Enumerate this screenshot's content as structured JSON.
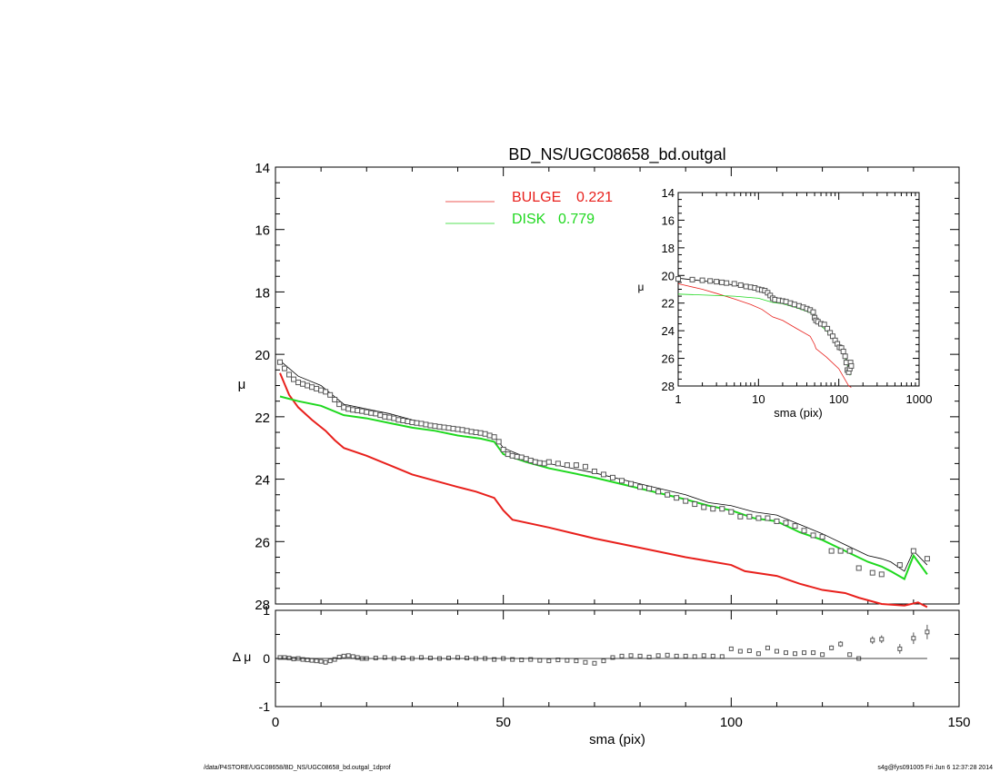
{
  "title": "BD_NS/UGC08658_bd.outgal",
  "footer_left": "/data/P4STORE/UGC08658/BD_NS/UGC08658_bd.outgal_1dprof",
  "footer_right": "s4g@fys091005  Fri Jun  6 12:37:28 2014",
  "colors": {
    "bulge": "#e8201c",
    "disk": "#1fd81f",
    "total": "#000000",
    "data": "#555555"
  },
  "chart_data": [
    {
      "type": "line",
      "panel": "main",
      "xlabel": "",
      "ylabel": "μ",
      "xlim": [
        0,
        150
      ],
      "ylim": [
        28,
        14
      ],
      "y_inverted": true,
      "yticks": [
        "14",
        "16",
        "18",
        "20",
        "22",
        "24",
        "26",
        "28"
      ],
      "legend": [
        {
          "label": "BULGE",
          "value": "0.221",
          "color": "#e8201c"
        },
        {
          "label": "DISK",
          "value": "0.779",
          "color": "#1fd81f"
        }
      ],
      "legend_position": "top-center",
      "series": [
        {
          "name": "BULGE",
          "color": "#e8201c",
          "x": [
            1,
            3,
            5,
            8,
            11,
            13,
            15,
            20,
            25,
            30,
            35,
            40,
            44,
            48,
            50,
            52,
            60,
            70,
            80,
            90,
            100,
            103,
            110,
            115,
            120,
            125,
            128,
            133,
            138,
            141,
            143
          ],
          "y": [
            20.6,
            21.3,
            21.7,
            22.1,
            22.45,
            22.75,
            23.0,
            23.25,
            23.55,
            23.85,
            24.05,
            24.25,
            24.4,
            24.6,
            25.0,
            25.3,
            25.55,
            25.9,
            26.2,
            26.5,
            26.75,
            26.95,
            27.1,
            27.35,
            27.55,
            27.65,
            27.8,
            28.0,
            28.05,
            27.95,
            28.1
          ]
        },
        {
          "name": "DISK",
          "color": "#1fd81f",
          "x": [
            1,
            5,
            10,
            15,
            20,
            25,
            30,
            35,
            40,
            45,
            48,
            50,
            55,
            60,
            70,
            80,
            90,
            95,
            100,
            105,
            110,
            115,
            120,
            125,
            130,
            133,
            135,
            138,
            140,
            143
          ],
          "y": [
            21.35,
            21.5,
            21.65,
            21.95,
            22.05,
            22.2,
            22.35,
            22.45,
            22.6,
            22.7,
            22.8,
            23.2,
            23.45,
            23.65,
            23.95,
            24.3,
            24.65,
            24.85,
            25.0,
            25.25,
            25.35,
            25.7,
            25.95,
            26.3,
            26.65,
            26.8,
            26.95,
            27.2,
            26.45,
            27.05
          ]
        },
        {
          "name": "TOTAL",
          "color": "#000000",
          "x": [
            1,
            5,
            10,
            15,
            20,
            25,
            30,
            35,
            40,
            45,
            48,
            50,
            55,
            60,
            70,
            80,
            90,
            95,
            100,
            105,
            110,
            115,
            120,
            125,
            130,
            133,
            135,
            138,
            140,
            143
          ],
          "y": [
            20.2,
            20.7,
            21.0,
            21.6,
            21.75,
            21.9,
            22.1,
            22.25,
            22.4,
            22.5,
            22.6,
            23.0,
            23.3,
            23.5,
            23.8,
            24.15,
            24.5,
            24.75,
            24.85,
            25.05,
            25.15,
            25.45,
            25.75,
            26.1,
            26.45,
            26.55,
            26.65,
            26.95,
            26.3,
            26.75
          ]
        },
        {
          "name": "DATA",
          "color": "#555555",
          "marker": "square",
          "x": [
            1,
            2,
            3,
            4,
            5,
            6,
            7,
            8,
            9,
            10,
            11,
            12,
            13,
            14,
            15,
            16,
            17,
            18,
            19,
            20,
            21,
            22,
            23,
            24,
            25,
            26,
            27,
            28,
            29,
            30,
            31,
            32,
            33,
            34,
            35,
            36,
            37,
            38,
            39,
            40,
            41,
            42,
            43,
            44,
            45,
            46,
            47,
            48,
            49,
            50,
            51,
            52,
            53,
            54,
            55,
            56,
            57,
            58,
            59,
            60,
            62,
            64,
            66,
            68,
            70,
            72,
            74,
            76,
            78,
            80,
            82,
            84,
            86,
            88,
            90,
            92,
            94,
            96,
            98,
            100,
            102,
            104,
            106,
            108,
            110,
            112,
            114,
            116,
            118,
            120,
            122,
            124,
            126,
            128,
            131,
            133,
            137,
            140,
            143
          ],
          "y": [
            20.25,
            20.45,
            20.65,
            20.8,
            20.9,
            20.95,
            21.0,
            21.05,
            21.1,
            21.15,
            21.2,
            21.3,
            21.45,
            21.6,
            21.7,
            21.75,
            21.78,
            21.8,
            21.82,
            21.85,
            21.88,
            21.9,
            21.95,
            22.0,
            22.02,
            22.05,
            22.1,
            22.12,
            22.15,
            22.18,
            22.2,
            22.22,
            22.25,
            22.28,
            22.3,
            22.32,
            22.34,
            22.36,
            22.38,
            22.4,
            22.42,
            22.45,
            22.48,
            22.5,
            22.52,
            22.55,
            22.6,
            22.65,
            22.8,
            23.05,
            23.2,
            23.25,
            23.28,
            23.3,
            23.35,
            23.4,
            23.45,
            23.48,
            23.5,
            23.45,
            23.5,
            23.55,
            23.55,
            23.6,
            23.75,
            23.85,
            23.95,
            24.05,
            24.15,
            24.25,
            24.3,
            24.4,
            24.5,
            24.6,
            24.7,
            24.8,
            24.9,
            24.95,
            24.95,
            25.05,
            25.2,
            25.2,
            25.25,
            25.25,
            25.35,
            25.4,
            25.5,
            25.65,
            25.8,
            25.85,
            26.3,
            26.3,
            26.3,
            26.85,
            27.0,
            27.05,
            26.75,
            26.3,
            26.55
          ]
        }
      ]
    },
    {
      "type": "scatter",
      "panel": "residual",
      "xlabel": "sma (pix)",
      "ylabel": "Δ μ",
      "xlim": [
        0,
        150
      ],
      "ylim": [
        -1,
        1
      ],
      "xticks": [
        "0",
        "50",
        "100",
        "150"
      ],
      "yticks": [
        "1",
        "0",
        "-1"
      ],
      "series": [
        {
          "name": "residual",
          "color": "#555555",
          "x": [
            1,
            2,
            3,
            4,
            5,
            6,
            7,
            8,
            9,
            10,
            11,
            12,
            13,
            14,
            15,
            16,
            17,
            18,
            19,
            20,
            22,
            24,
            26,
            28,
            30,
            32,
            34,
            36,
            38,
            40,
            42,
            44,
            46,
            48,
            50,
            52,
            54,
            56,
            58,
            60,
            62,
            64,
            66,
            68,
            70,
            72,
            74,
            76,
            78,
            80,
            82,
            84,
            86,
            88,
            90,
            92,
            94,
            96,
            98,
            100,
            102,
            104,
            106,
            108,
            110,
            112,
            114,
            116,
            118,
            120,
            122,
            124,
            126,
            128,
            131,
            133,
            137,
            140,
            143
          ],
          "y": [
            0.02,
            0.02,
            0.01,
            -0.01,
            0.0,
            -0.02,
            -0.03,
            -0.04,
            -0.05,
            -0.06,
            -0.08,
            -0.05,
            -0.02,
            0.03,
            0.05,
            0.06,
            0.04,
            0.02,
            0.0,
            0.0,
            0.01,
            0.02,
            0.0,
            0.01,
            0.0,
            0.02,
            0.01,
            0.0,
            0.01,
            0.02,
            0.01,
            0.0,
            0.0,
            -0.02,
            0.0,
            -0.02,
            -0.03,
            -0.02,
            -0.04,
            -0.05,
            -0.03,
            -0.04,
            -0.05,
            -0.08,
            -0.1,
            -0.05,
            0.02,
            0.05,
            0.06,
            0.05,
            0.03,
            0.06,
            0.07,
            0.05,
            0.05,
            0.04,
            0.06,
            0.05,
            0.04,
            0.2,
            0.15,
            0.16,
            0.1,
            0.22,
            0.15,
            0.12,
            0.1,
            0.12,
            0.12,
            0.08,
            0.22,
            0.3,
            0.08,
            0.0,
            0.38,
            0.4,
            0.2,
            0.42,
            0.55
          ],
          "err": [
            0,
            0,
            0,
            0,
            0,
            0,
            0,
            0,
            0,
            0,
            0,
            0,
            0,
            0,
            0,
            0,
            0,
            0,
            0,
            0,
            0,
            0,
            0,
            0,
            0,
            0,
            0,
            0,
            0,
            0,
            0,
            0,
            0,
            0,
            0,
            0,
            0,
            0,
            0,
            0,
            0,
            0,
            0,
            0,
            0,
            0,
            0,
            0,
            0,
            0,
            0,
            0,
            0,
            0,
            0,
            0,
            0,
            0,
            0,
            0,
            0,
            0,
            0,
            0,
            0,
            0,
            0,
            0,
            0,
            0,
            0.05,
            0.06,
            0.04,
            0.04,
            0.08,
            0.08,
            0.1,
            0.12,
            0.15
          ]
        },
        {
          "name": "zero",
          "color": "#000000",
          "x": [
            0,
            143
          ],
          "y": [
            0,
            0
          ]
        }
      ]
    },
    {
      "type": "line",
      "panel": "inset",
      "xlabel": "sma (pix)",
      "ylabel": "μ",
      "xscale": "log",
      "xlim": [
        1,
        1000
      ],
      "ylim": [
        28,
        14
      ],
      "xticks": [
        "1",
        "10",
        "100",
        "1000"
      ],
      "yticks": [
        "14",
        "16",
        "18",
        "20",
        "22",
        "24",
        "26",
        "28"
      ],
      "series": [
        {
          "name": "BULGE",
          "color": "#e8201c",
          "x": [
            1,
            2,
            3,
            5,
            8,
            11,
            15,
            20,
            30,
            44,
            50,
            52,
            70,
            100,
            120,
            133,
            143
          ],
          "y": [
            20.6,
            21.0,
            21.3,
            21.7,
            22.1,
            22.45,
            23.0,
            23.25,
            23.85,
            24.4,
            25.0,
            25.3,
            25.9,
            26.75,
            27.55,
            28.0,
            28.1
          ]
        },
        {
          "name": "DISK",
          "color": "#1fd81f",
          "x": [
            1,
            3,
            5,
            10,
            15,
            20,
            30,
            40,
            48,
            50,
            60,
            80,
            100,
            120,
            138,
            143
          ],
          "y": [
            21.35,
            21.45,
            21.5,
            21.65,
            21.95,
            22.05,
            22.35,
            22.6,
            22.8,
            23.2,
            23.65,
            24.3,
            25.0,
            25.95,
            27.2,
            27.05
          ]
        },
        {
          "name": "TOTAL",
          "color": "#000000",
          "x": [
            1,
            3,
            5,
            10,
            15,
            20,
            30,
            40,
            48,
            50,
            60,
            80,
            100,
            120,
            138,
            143
          ],
          "y": [
            20.2,
            20.5,
            20.7,
            21.0,
            21.6,
            21.75,
            22.1,
            22.4,
            22.6,
            23.0,
            23.5,
            24.15,
            24.85,
            25.75,
            26.95,
            26.75
          ]
        },
        {
          "name": "DATA",
          "color": "#555555",
          "marker": "square",
          "x": [
            1,
            1.5,
            2,
            2.5,
            3,
            3.5,
            4,
            5,
            6,
            7,
            8,
            9,
            10,
            11,
            12,
            13,
            14,
            15,
            16,
            18,
            20,
            22,
            25,
            28,
            32,
            36,
            40,
            44,
            48,
            50,
            52,
            55,
            60,
            66,
            72,
            78,
            84,
            90,
            96,
            102,
            108,
            114,
            120,
            124,
            128,
            133,
            137,
            140,
            143
          ],
          "y": [
            20.25,
            20.3,
            20.35,
            20.4,
            20.45,
            20.5,
            20.55,
            20.6,
            20.7,
            20.8,
            20.85,
            20.9,
            21.0,
            21.05,
            21.1,
            21.25,
            21.45,
            21.65,
            21.75,
            21.8,
            21.85,
            21.9,
            22.0,
            22.1,
            22.2,
            22.3,
            22.4,
            22.5,
            22.65,
            23.05,
            23.25,
            23.35,
            23.5,
            23.55,
            23.85,
            24.15,
            24.4,
            24.7,
            24.95,
            25.2,
            25.25,
            25.5,
            25.85,
            26.3,
            26.85,
            27.0,
            26.75,
            26.3,
            26.55
          ]
        }
      ]
    }
  ]
}
